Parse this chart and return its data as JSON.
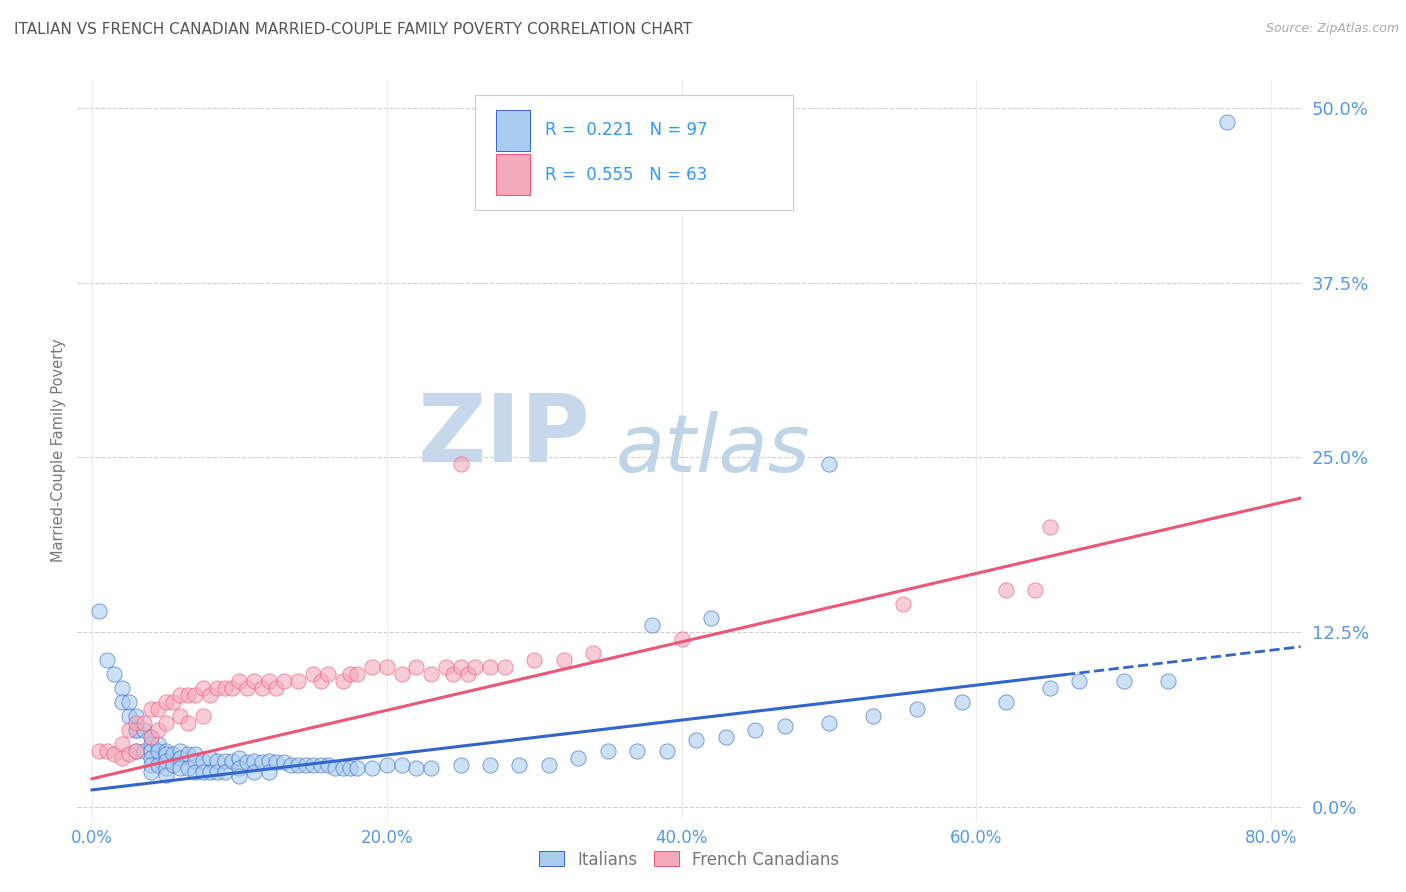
{
  "title": "ITALIAN VS FRENCH CANADIAN MARRIED-COUPLE FAMILY POVERTY CORRELATION CHART",
  "source": "Source: ZipAtlas.com",
  "ylabel": "Married-Couple Family Poverty",
  "xlabel_ticks": [
    "0.0%",
    "20.0%",
    "40.0%",
    "60.0%",
    "80.0%"
  ],
  "xlabel_vals": [
    0.0,
    0.2,
    0.4,
    0.6,
    0.8
  ],
  "ylabel_ticks": [
    "0.0%",
    "12.5%",
    "25.0%",
    "37.5%",
    "50.0%"
  ],
  "ylabel_vals": [
    0.0,
    0.125,
    0.25,
    0.375,
    0.5
  ],
  "xlim": [
    -0.01,
    0.82
  ],
  "ylim": [
    -0.01,
    0.52
  ],
  "italian_R": 0.221,
  "italian_N": 97,
  "french_R": 0.555,
  "french_N": 63,
  "italian_color": "#aaccf0",
  "french_color": "#f4aabb",
  "italian_line_color": "#3366cc",
  "french_line_color": "#ee5577",
  "background_color": "#ffffff",
  "grid_color": "#cccccc",
  "title_color": "#555555",
  "axis_label_color": "#777777",
  "tick_color": "#5599ee",
  "watermark_zip_color": "#c8d8ec",
  "watermark_atlas_color": "#c0d4e8",
  "legend_color": "#3399ff",
  "italian_line_solid_x_end": 0.66,
  "ital_line_y0": 0.012,
  "ital_line_slope": 0.125,
  "fren_line_y0": 0.02,
  "fren_line_slope": 0.245,
  "italian_scatter_x": [
    0.005,
    0.01,
    0.015,
    0.02,
    0.02,
    0.025,
    0.025,
    0.03,
    0.03,
    0.03,
    0.03,
    0.035,
    0.035,
    0.04,
    0.04,
    0.04,
    0.04,
    0.04,
    0.04,
    0.045,
    0.045,
    0.045,
    0.05,
    0.05,
    0.05,
    0.05,
    0.05,
    0.055,
    0.055,
    0.06,
    0.06,
    0.06,
    0.065,
    0.065,
    0.07,
    0.07,
    0.07,
    0.075,
    0.075,
    0.08,
    0.08,
    0.085,
    0.085,
    0.09,
    0.09,
    0.095,
    0.1,
    0.1,
    0.1,
    0.105,
    0.11,
    0.11,
    0.115,
    0.12,
    0.12,
    0.125,
    0.13,
    0.135,
    0.14,
    0.145,
    0.15,
    0.155,
    0.16,
    0.165,
    0.17,
    0.175,
    0.18,
    0.19,
    0.2,
    0.21,
    0.22,
    0.23,
    0.25,
    0.27,
    0.29,
    0.31,
    0.33,
    0.35,
    0.37,
    0.39,
    0.41,
    0.43,
    0.45,
    0.47,
    0.5,
    0.53,
    0.56,
    0.59,
    0.62,
    0.65,
    0.67,
    0.7,
    0.73,
    0.5,
    0.38,
    0.42,
    0.77
  ],
  "italian_scatter_y": [
    0.14,
    0.105,
    0.095,
    0.085,
    0.075,
    0.075,
    0.065,
    0.065,
    0.055,
    0.055,
    0.04,
    0.055,
    0.04,
    0.05,
    0.045,
    0.04,
    0.035,
    0.03,
    0.025,
    0.045,
    0.04,
    0.03,
    0.04,
    0.038,
    0.033,
    0.028,
    0.023,
    0.038,
    0.03,
    0.04,
    0.035,
    0.028,
    0.038,
    0.028,
    0.038,
    0.033,
    0.025,
    0.033,
    0.025,
    0.035,
    0.025,
    0.033,
    0.025,
    0.033,
    0.025,
    0.033,
    0.035,
    0.028,
    0.022,
    0.032,
    0.033,
    0.025,
    0.032,
    0.033,
    0.025,
    0.032,
    0.032,
    0.03,
    0.03,
    0.03,
    0.03,
    0.03,
    0.03,
    0.028,
    0.028,
    0.028,
    0.028,
    0.028,
    0.03,
    0.03,
    0.028,
    0.028,
    0.03,
    0.03,
    0.03,
    0.03,
    0.035,
    0.04,
    0.04,
    0.04,
    0.048,
    0.05,
    0.055,
    0.058,
    0.06,
    0.065,
    0.07,
    0.075,
    0.075,
    0.085,
    0.09,
    0.09,
    0.09,
    0.245,
    0.13,
    0.135,
    0.49
  ],
  "french_scatter_x": [
    0.005,
    0.01,
    0.015,
    0.02,
    0.02,
    0.025,
    0.025,
    0.03,
    0.03,
    0.035,
    0.04,
    0.04,
    0.045,
    0.045,
    0.05,
    0.05,
    0.055,
    0.06,
    0.06,
    0.065,
    0.065,
    0.07,
    0.075,
    0.075,
    0.08,
    0.085,
    0.09,
    0.095,
    0.1,
    0.105,
    0.11,
    0.115,
    0.12,
    0.125,
    0.13,
    0.14,
    0.15,
    0.155,
    0.16,
    0.17,
    0.175,
    0.18,
    0.19,
    0.2,
    0.21,
    0.22,
    0.23,
    0.24,
    0.245,
    0.25,
    0.255,
    0.26,
    0.27,
    0.28,
    0.3,
    0.32,
    0.34,
    0.4,
    0.55,
    0.62,
    0.64,
    0.65,
    0.25
  ],
  "french_scatter_y": [
    0.04,
    0.04,
    0.038,
    0.045,
    0.035,
    0.055,
    0.038,
    0.06,
    0.04,
    0.06,
    0.07,
    0.05,
    0.07,
    0.055,
    0.075,
    0.06,
    0.075,
    0.08,
    0.065,
    0.08,
    0.06,
    0.08,
    0.085,
    0.065,
    0.08,
    0.085,
    0.085,
    0.085,
    0.09,
    0.085,
    0.09,
    0.085,
    0.09,
    0.085,
    0.09,
    0.09,
    0.095,
    0.09,
    0.095,
    0.09,
    0.095,
    0.095,
    0.1,
    0.1,
    0.095,
    0.1,
    0.095,
    0.1,
    0.095,
    0.1,
    0.095,
    0.1,
    0.1,
    0.1,
    0.105,
    0.105,
    0.11,
    0.12,
    0.145,
    0.155,
    0.155,
    0.2,
    0.245
  ]
}
